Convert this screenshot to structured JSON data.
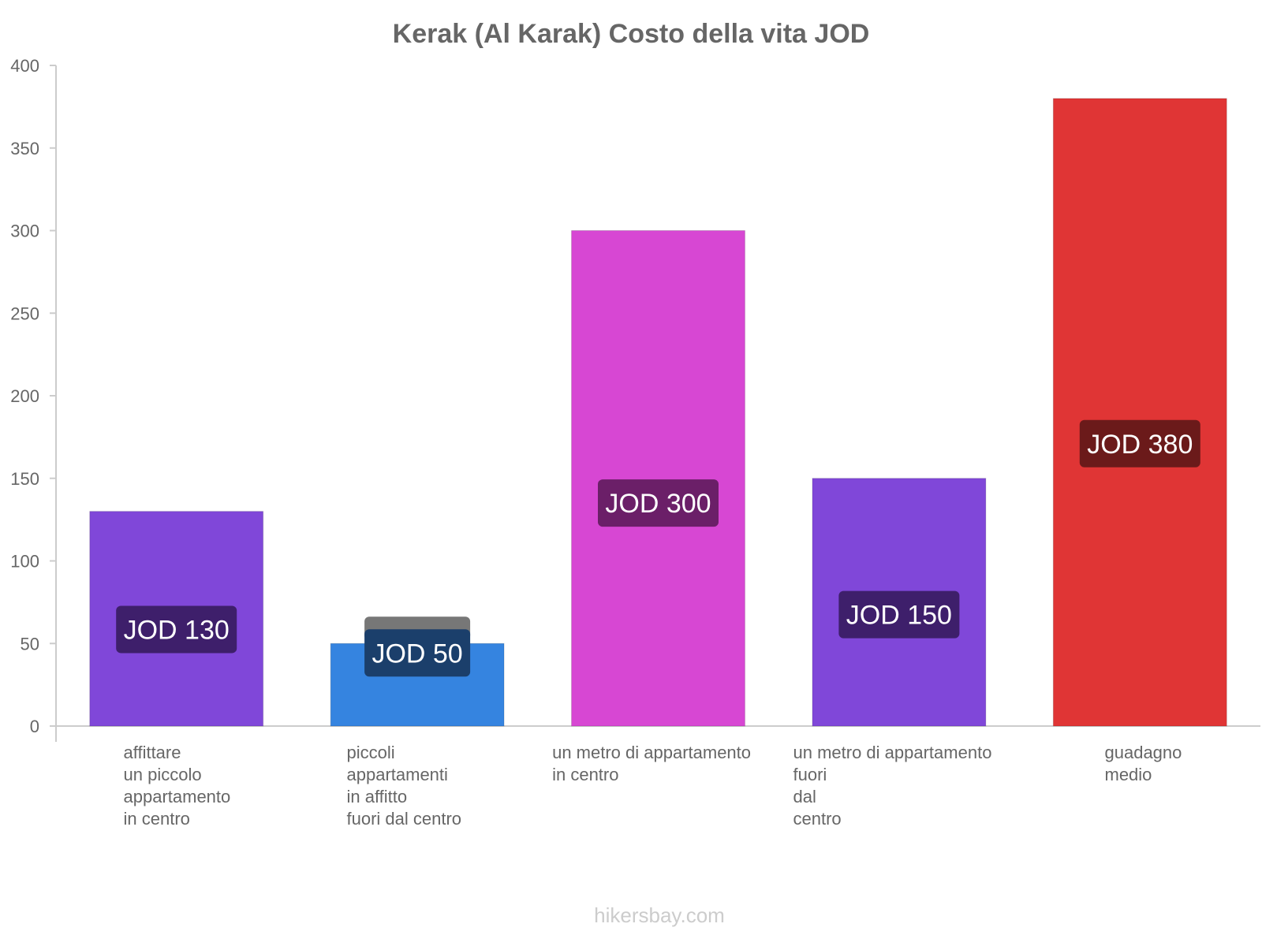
{
  "chart_data": {
    "type": "bar",
    "title": "Kerak (Al Karak) Costo della vita JOD",
    "ylim": [
      0,
      400
    ],
    "yticks": [
      0,
      50,
      100,
      150,
      200,
      250,
      300,
      350,
      400
    ],
    "categories": [
      [
        "affittare",
        "un piccolo",
        "appartamento",
        "in centro"
      ],
      [
        "piccoli",
        "appartamenti",
        "in affitto",
        "fuori dal centro"
      ],
      [
        "un metro di appartamento",
        "in centro"
      ],
      [
        "un metro di appartamento",
        "fuori",
        "dal",
        "centro"
      ],
      [
        "guadagno",
        "medio"
      ]
    ],
    "values": [
      130,
      50,
      300,
      150,
      380
    ],
    "value_labels": [
      "JOD 130",
      "JOD 50",
      "JOD 300",
      "JOD 150",
      "JOD 380"
    ],
    "colors": [
      "#8047d9",
      "#3584e0",
      "#d747d3",
      "#8047d9",
      "#e03535"
    ],
    "label_colors": [
      "#3e1f6b",
      "#1b3f6b",
      "#6b1f68",
      "#3e1f6b",
      "#6b1a1a"
    ],
    "grid": false
  },
  "source": "hikersbay.com"
}
